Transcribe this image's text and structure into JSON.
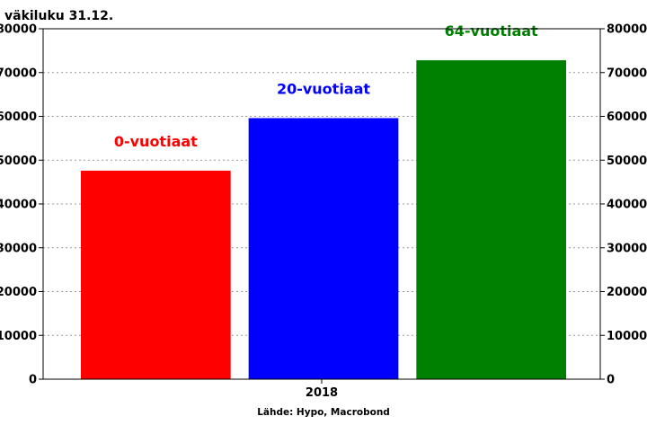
{
  "chart_data": {
    "type": "bar",
    "title": "väkiluku 31.12.",
    "categories": [
      "2018"
    ],
    "series": [
      {
        "name": "0-vuotiaat",
        "values": [
          47600
        ],
        "color": "#ff0000"
      },
      {
        "name": "20-vuotiaat",
        "values": [
          59600
        ],
        "color": "#0000ff"
      },
      {
        "name": "64-vuotiaat",
        "values": [
          72800
        ],
        "color": "#008000"
      }
    ],
    "ylim": [
      0,
      80000
    ],
    "yticks": [
      0,
      10000,
      20000,
      30000,
      40000,
      50000,
      60000,
      70000,
      80000
    ],
    "ytick_labels": [
      "0",
      "10000",
      "20000",
      "30000",
      "40000",
      "50000",
      "60000",
      "70000",
      "80000"
    ],
    "y_axis_both_sides": true,
    "grid": "horizontal-dotted",
    "legend": "none",
    "source": "Lähde: Hypo, Macrobond"
  }
}
